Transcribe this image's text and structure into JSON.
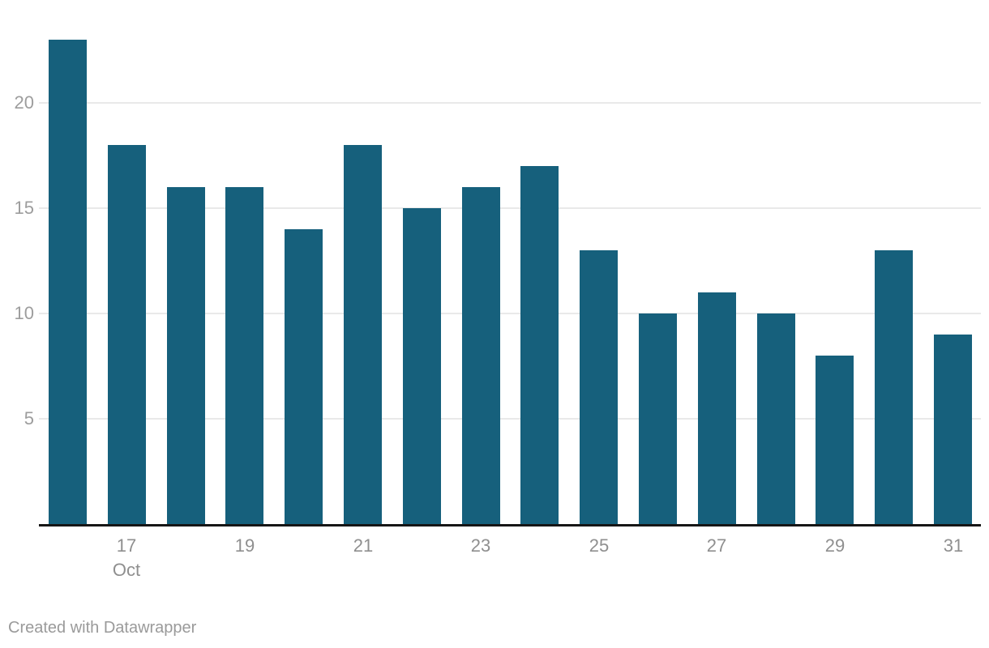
{
  "chart_data": {
    "type": "bar",
    "title": "",
    "xlabel": "",
    "ylabel": "",
    "categories": [
      "Oct 16",
      "Oct 17",
      "Oct 18",
      "Oct 19",
      "Oct 20",
      "Oct 21",
      "Oct 22",
      "Oct 23",
      "Oct 24",
      "Oct 25",
      "Oct 26",
      "Oct 27",
      "Oct 28",
      "Oct 29",
      "Oct 30",
      "Oct 31"
    ],
    "values": [
      23,
      18,
      16,
      16,
      14,
      18,
      15,
      16,
      17,
      13,
      10,
      11,
      10,
      8,
      13,
      9
    ],
    "y_ticks": [
      5,
      10,
      15,
      20
    ],
    "ylim": [
      0,
      23.2
    ],
    "grid": "horizontal-only",
    "legend": "none",
    "x_ticks": [
      {
        "index": 1,
        "label": "17",
        "sub": "Oct"
      },
      {
        "index": 3,
        "label": "19",
        "sub": ""
      },
      {
        "index": 5,
        "label": "21",
        "sub": ""
      },
      {
        "index": 7,
        "label": "23",
        "sub": ""
      },
      {
        "index": 9,
        "label": "25",
        "sub": ""
      },
      {
        "index": 11,
        "label": "27",
        "sub": ""
      },
      {
        "index": 13,
        "label": "29",
        "sub": ""
      },
      {
        "index": 15,
        "label": "31",
        "sub": ""
      }
    ],
    "colors": {
      "bar": "#16607c",
      "gridline": "#e9e9e9",
      "axis_line": "#161616",
      "y_tick_label": "#9d9d9d",
      "x_tick_label": "#8f8f8f",
      "credit_text": "#9a9a9a",
      "background": "#ffffff"
    }
  },
  "footer": {
    "credit": "Created with Datawrapper"
  }
}
